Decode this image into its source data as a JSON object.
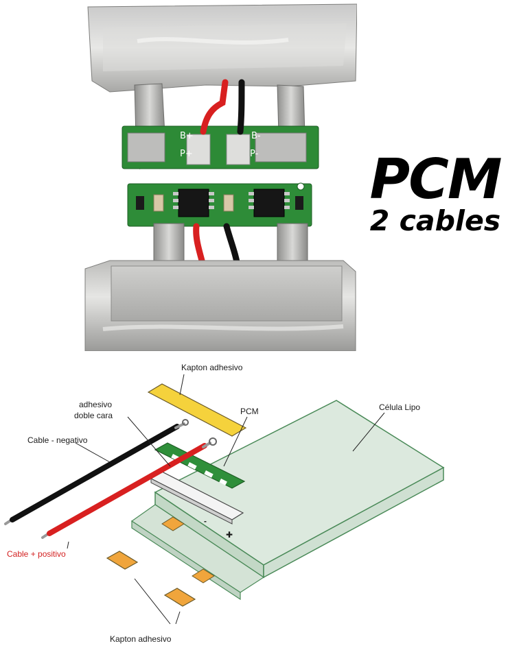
{
  "title": {
    "main": "PCM",
    "sub": "2 cables"
  },
  "photo": {
    "pcb_silkscreen": {
      "b_plus": "B+",
      "b_minus": "B-",
      "p_plus": "P+",
      "p_minus": "P-"
    }
  },
  "diagram": {
    "labels": {
      "kapton_top": "Kapton adhesivo",
      "adhesive_line1": "adhesivo",
      "adhesive_line2": "doble cara",
      "pcm": "PCM",
      "cell": "Célula Lipo",
      "cable_negative": "Cable - negativo",
      "cable_positive": "Cable + positivo",
      "kapton_bottom": "Kapton adhesivo"
    },
    "marks": {
      "minus": "-",
      "plus": "✚"
    }
  },
  "colors": {
    "kapton": "#f5d23c",
    "kapton_orange": "#f0a53c",
    "pcb_green": "#2f8f3a",
    "wire_red": "#d82020",
    "wire_black": "#111111",
    "cell_fill": "#d9e8dc",
    "cell_edge": "#4a8a58"
  }
}
